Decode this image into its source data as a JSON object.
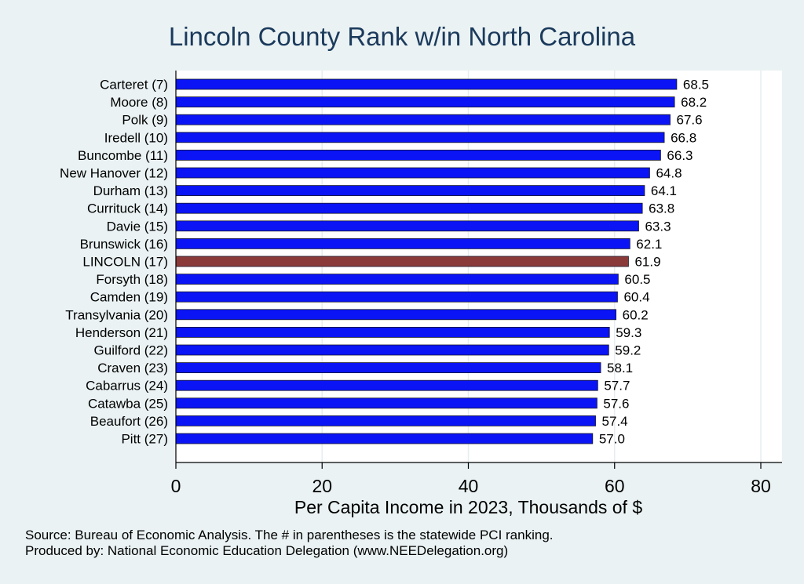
{
  "chart_data": {
    "type": "bar",
    "orientation": "horizontal",
    "title": "Lincoln County Rank w/in North Carolina",
    "xlabel": "Per Capita Income in 2023, Thousands of $",
    "xlim": [
      0,
      82
    ],
    "xticks": [
      0,
      20,
      40,
      60,
      80
    ],
    "categories": [
      "Carteret  (7)",
      "Moore  (8)",
      "Polk  (9)",
      "Iredell (10)",
      "Buncombe (11)",
      "New Hanover (12)",
      "Durham (13)",
      "Currituck (14)",
      "Davie (15)",
      "Brunswick (16)",
      "LINCOLN (17)",
      "Forsyth (18)",
      "Camden (19)",
      "Transylvania (20)",
      "Henderson (21)",
      "Guilford (22)",
      "Craven (23)",
      "Cabarrus (24)",
      "Catawba (25)",
      "Beaufort (26)",
      "Pitt (27)"
    ],
    "values": [
      68.5,
      68.2,
      67.6,
      66.8,
      66.3,
      64.8,
      64.1,
      63.8,
      63.3,
      62.1,
      61.9,
      60.5,
      60.4,
      60.2,
      59.3,
      59.2,
      58.1,
      57.7,
      57.6,
      57.4,
      57.0
    ],
    "value_labels": [
      "68.5",
      "68.2",
      "67.6",
      "66.8",
      "66.3",
      "64.8",
      "64.1",
      "63.8",
      "63.3",
      "62.1",
      "61.9",
      "60.5",
      "60.4",
      "60.2",
      "59.3",
      "59.2",
      "58.1",
      "57.7",
      "57.6",
      "57.4",
      "57.0"
    ],
    "highlight_category": "LINCOLN (17)",
    "colors": {
      "bar": "#0a14f5",
      "highlight": "#8b3a3a",
      "plot_bg": "#ffffff",
      "outer_bg": "#eaf2f3",
      "grid": "#e6eef0",
      "title": "#1b3a5c"
    },
    "grid": true
  },
  "notes": {
    "source": "Source: Bureau of Economic Analysis. The # in parentheses is the statewide PCI ranking.",
    "produced": "Produced by: National Economic Education Delegation (www.NEEDelegation.org)"
  }
}
